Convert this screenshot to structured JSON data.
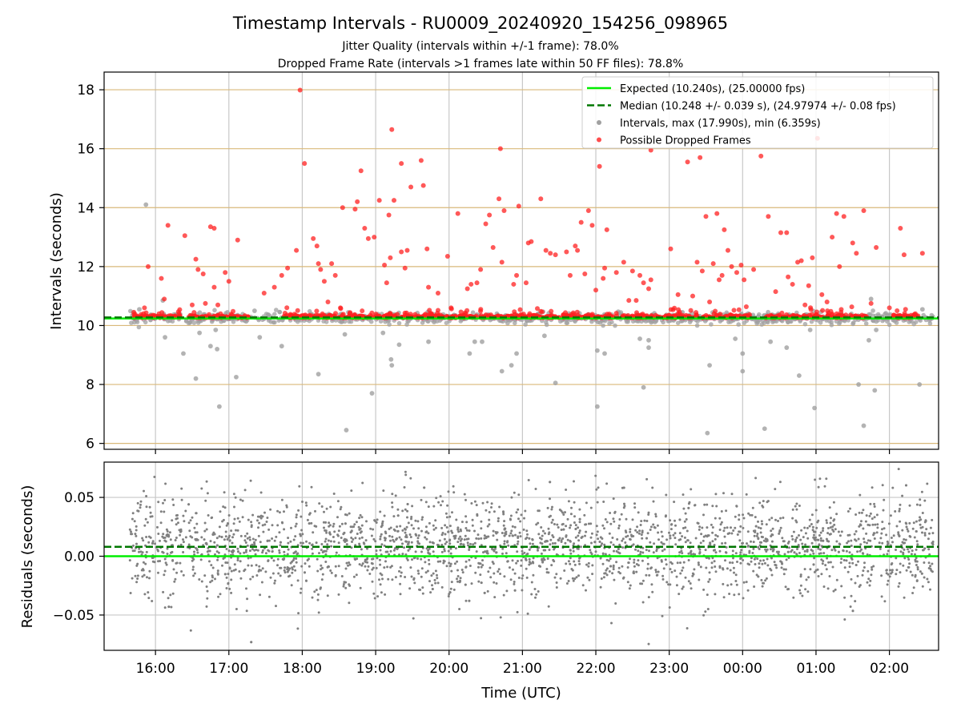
{
  "chart_data": {
    "title": "Timestamp Intervals - RU0009_20240920_154256_098965",
    "subtitle_1": "Jitter Quality (intervals within +/-1 frame): 78.0%",
    "subtitle_2": "Dropped Frame Rate (intervals >1 frames late within 50 FF files): 78.8%",
    "xlabel": "Time (UTC)",
    "x_tick_labels": [
      "16:00",
      "17:00",
      "18:00",
      "19:00",
      "20:00",
      "21:00",
      "22:00",
      "23:00",
      "00:00",
      "01:00",
      "02:00"
    ],
    "x_range_hours_from_midnight": [
      15.3,
      26.67
    ],
    "grid": true,
    "colors": {
      "expected": "#00ee00",
      "median": "#007700",
      "intervals": "#a0a0a0",
      "dropped": "#ff2020",
      "residuals": "#808080",
      "top_grid_h": "#d9b97a",
      "grid": "#c8c8c8"
    },
    "panels": [
      {
        "type": "scatter",
        "ylabel": "Intervals (seconds)",
        "ylim": [
          5.8,
          18.6
        ],
        "y_ticks": [
          "6",
          "8",
          "10",
          "12",
          "14",
          "16",
          "18"
        ],
        "y_tick_values": [
          6,
          8,
          10,
          12,
          14,
          16,
          18
        ],
        "expected_line": 10.24,
        "median_line": 10.248,
        "legend_position": "top-right",
        "legend": [
          "Expected (10.240s), (25.00000 fps)",
          "Median (10.248 +/- 0.039 s), (24.97974 +/- 0.08 fps)",
          "Intervals, max (17.990s), min (6.359s)",
          "Possible Dropped Frames"
        ],
        "interval_outliers": [
          {
            "t": 15.78,
            "y": 10.55
          },
          {
            "t": 15.87,
            "y": 14.1
          },
          {
            "t": 16.13,
            "y": 9.6
          },
          {
            "t": 16.38,
            "y": 9.05
          },
          {
            "t": 16.55,
            "y": 8.2
          },
          {
            "t": 16.6,
            "y": 9.75
          },
          {
            "t": 16.75,
            "y": 9.3
          },
          {
            "t": 16.82,
            "y": 9.85
          },
          {
            "t": 16.84,
            "y": 9.2
          },
          {
            "t": 16.87,
            "y": 7.25
          },
          {
            "t": 17.1,
            "y": 8.25
          },
          {
            "t": 17.35,
            "y": 10.5
          },
          {
            "t": 17.42,
            "y": 9.6
          },
          {
            "t": 17.72,
            "y": 9.3
          },
          {
            "t": 18.22,
            "y": 8.35
          },
          {
            "t": 18.58,
            "y": 9.7
          },
          {
            "t": 18.6,
            "y": 6.45
          },
          {
            "t": 18.95,
            "y": 7.7
          },
          {
            "t": 19.1,
            "y": 9.75
          },
          {
            "t": 19.21,
            "y": 8.85
          },
          {
            "t": 19.22,
            "y": 8.65
          },
          {
            "t": 19.32,
            "y": 9.35
          },
          {
            "t": 19.72,
            "y": 9.45
          },
          {
            "t": 20.28,
            "y": 9.05
          },
          {
            "t": 20.35,
            "y": 9.45
          },
          {
            "t": 20.45,
            "y": 9.45
          },
          {
            "t": 20.72,
            "y": 8.45
          },
          {
            "t": 20.85,
            "y": 8.65
          },
          {
            "t": 20.92,
            "y": 9.05
          },
          {
            "t": 21.3,
            "y": 9.65
          },
          {
            "t": 21.45,
            "y": 8.05
          },
          {
            "t": 22.02,
            "y": 7.25
          },
          {
            "t": 22.02,
            "y": 9.15
          },
          {
            "t": 22.12,
            "y": 9.05
          },
          {
            "t": 22.6,
            "y": 9.55
          },
          {
            "t": 22.65,
            "y": 7.9
          },
          {
            "t": 22.72,
            "y": 9.25
          },
          {
            "t": 22.72,
            "y": 9.5
          },
          {
            "t": 23.18,
            "y": 10.45
          },
          {
            "t": 23.52,
            "y": 6.35
          },
          {
            "t": 23.55,
            "y": 8.65
          },
          {
            "t": 23.9,
            "y": 9.55
          },
          {
            "t": 24.0,
            "y": 9.05
          },
          {
            "t": 24.0,
            "y": 8.45
          },
          {
            "t": 24.3,
            "y": 6.5
          },
          {
            "t": 24.38,
            "y": 9.45
          },
          {
            "t": 24.6,
            "y": 9.25
          },
          {
            "t": 24.77,
            "y": 8.3
          },
          {
            "t": 24.92,
            "y": 9.85
          },
          {
            "t": 24.98,
            "y": 7.2
          },
          {
            "t": 25.58,
            "y": 8.0
          },
          {
            "t": 25.65,
            "y": 6.6
          },
          {
            "t": 25.72,
            "y": 9.5
          },
          {
            "t": 25.8,
            "y": 7.8
          },
          {
            "t": 25.82,
            "y": 9.85
          },
          {
            "t": 26.41,
            "y": 8.0
          },
          {
            "t": 26.45,
            "y": 10.55
          },
          {
            "t": 25.75,
            "y": 10.9
          },
          {
            "t": 16.1,
            "y": 10.85
          },
          {
            "t": 17.12,
            "y": 10.35
          }
        ],
        "dropped_frames": [
          {
            "t": 15.9,
            "y": 12.0
          },
          {
            "t": 15.85,
            "y": 10.6
          },
          {
            "t": 16.08,
            "y": 11.6
          },
          {
            "t": 16.17,
            "y": 13.4
          },
          {
            "t": 16.12,
            "y": 10.9
          },
          {
            "t": 16.4,
            "y": 13.05
          },
          {
            "t": 16.5,
            "y": 10.7
          },
          {
            "t": 16.55,
            "y": 12.25
          },
          {
            "t": 16.58,
            "y": 11.9
          },
          {
            "t": 16.65,
            "y": 11.75
          },
          {
            "t": 16.68,
            "y": 10.75
          },
          {
            "t": 16.75,
            "y": 13.35
          },
          {
            "t": 16.8,
            "y": 13.3
          },
          {
            "t": 16.8,
            "y": 11.3
          },
          {
            "t": 16.85,
            "y": 10.7
          },
          {
            "t": 16.95,
            "y": 11.8
          },
          {
            "t": 17.0,
            "y": 11.5
          },
          {
            "t": 17.12,
            "y": 12.9
          },
          {
            "t": 17.48,
            "y": 11.1
          },
          {
            "t": 17.62,
            "y": 11.3
          },
          {
            "t": 17.72,
            "y": 11.7
          },
          {
            "t": 17.8,
            "y": 11.95
          },
          {
            "t": 17.92,
            "y": 12.55
          },
          {
            "t": 17.97,
            "y": 17.99
          },
          {
            "t": 18.03,
            "y": 15.5
          },
          {
            "t": 18.15,
            "y": 12.95
          },
          {
            "t": 18.2,
            "y": 12.7
          },
          {
            "t": 18.22,
            "y": 12.1
          },
          {
            "t": 18.25,
            "y": 11.9
          },
          {
            "t": 18.3,
            "y": 11.5
          },
          {
            "t": 18.35,
            "y": 10.8
          },
          {
            "t": 18.4,
            "y": 12.1
          },
          {
            "t": 18.45,
            "y": 11.7
          },
          {
            "t": 18.52,
            "y": 10.6
          },
          {
            "t": 18.55,
            "y": 14.0
          },
          {
            "t": 18.72,
            "y": 13.95
          },
          {
            "t": 18.75,
            "y": 14.2
          },
          {
            "t": 18.8,
            "y": 15.25
          },
          {
            "t": 18.85,
            "y": 13.3
          },
          {
            "t": 18.9,
            "y": 12.95
          },
          {
            "t": 18.98,
            "y": 13.0
          },
          {
            "t": 19.05,
            "y": 14.25
          },
          {
            "t": 19.12,
            "y": 12.05
          },
          {
            "t": 19.15,
            "y": 11.45
          },
          {
            "t": 19.2,
            "y": 12.3
          },
          {
            "t": 19.18,
            "y": 13.75
          },
          {
            "t": 19.22,
            "y": 16.65
          },
          {
            "t": 19.25,
            "y": 14.25
          },
          {
            "t": 19.35,
            "y": 15.5
          },
          {
            "t": 19.35,
            "y": 12.5
          },
          {
            "t": 19.4,
            "y": 11.95
          },
          {
            "t": 19.43,
            "y": 12.55
          },
          {
            "t": 19.48,
            "y": 14.7
          },
          {
            "t": 19.62,
            "y": 15.6
          },
          {
            "t": 19.65,
            "y": 14.75
          },
          {
            "t": 19.7,
            "y": 12.6
          },
          {
            "t": 19.72,
            "y": 11.3
          },
          {
            "t": 19.85,
            "y": 11.1
          },
          {
            "t": 19.98,
            "y": 12.35
          },
          {
            "t": 20.12,
            "y": 13.8
          },
          {
            "t": 20.25,
            "y": 11.25
          },
          {
            "t": 20.3,
            "y": 11.4
          },
          {
            "t": 20.38,
            "y": 11.45
          },
          {
            "t": 20.43,
            "y": 11.9
          },
          {
            "t": 20.5,
            "y": 13.45
          },
          {
            "t": 20.55,
            "y": 13.75
          },
          {
            "t": 20.6,
            "y": 12.65
          },
          {
            "t": 20.68,
            "y": 14.3
          },
          {
            "t": 20.7,
            "y": 16.0
          },
          {
            "t": 20.72,
            "y": 12.15
          },
          {
            "t": 20.75,
            "y": 13.9
          },
          {
            "t": 20.88,
            "y": 11.4
          },
          {
            "t": 20.92,
            "y": 11.7
          },
          {
            "t": 20.95,
            "y": 14.05
          },
          {
            "t": 21.05,
            "y": 11.45
          },
          {
            "t": 21.08,
            "y": 12.8
          },
          {
            "t": 21.12,
            "y": 12.85
          },
          {
            "t": 21.25,
            "y": 14.3
          },
          {
            "t": 21.32,
            "y": 12.55
          },
          {
            "t": 21.38,
            "y": 12.45
          },
          {
            "t": 21.45,
            "y": 12.4
          },
          {
            "t": 21.6,
            "y": 12.5
          },
          {
            "t": 21.65,
            "y": 11.7
          },
          {
            "t": 21.72,
            "y": 12.7
          },
          {
            "t": 21.75,
            "y": 12.55
          },
          {
            "t": 21.8,
            "y": 13.5
          },
          {
            "t": 21.85,
            "y": 11.75
          },
          {
            "t": 21.9,
            "y": 13.9
          },
          {
            "t": 21.95,
            "y": 13.4
          },
          {
            "t": 22.0,
            "y": 11.2
          },
          {
            "t": 22.05,
            "y": 15.4
          },
          {
            "t": 22.1,
            "y": 11.6
          },
          {
            "t": 22.12,
            "y": 11.95
          },
          {
            "t": 22.15,
            "y": 13.25
          },
          {
            "t": 22.28,
            "y": 11.8
          },
          {
            "t": 22.38,
            "y": 12.15
          },
          {
            "t": 22.45,
            "y": 10.85
          },
          {
            "t": 22.5,
            "y": 11.85
          },
          {
            "t": 22.55,
            "y": 10.85
          },
          {
            "t": 22.6,
            "y": 11.7
          },
          {
            "t": 22.65,
            "y": 11.45
          },
          {
            "t": 22.72,
            "y": 11.25
          },
          {
            "t": 22.75,
            "y": 11.55
          },
          {
            "t": 23.02,
            "y": 12.6
          },
          {
            "t": 23.12,
            "y": 11.05
          },
          {
            "t": 23.25,
            "y": 15.55
          },
          {
            "t": 23.32,
            "y": 11.0
          },
          {
            "t": 23.38,
            "y": 12.15
          },
          {
            "t": 23.42,
            "y": 15.7
          },
          {
            "t": 23.45,
            "y": 11.85
          },
          {
            "t": 23.5,
            "y": 13.7
          },
          {
            "t": 23.55,
            "y": 10.8
          },
          {
            "t": 23.6,
            "y": 12.1
          },
          {
            "t": 23.65,
            "y": 13.8
          },
          {
            "t": 23.68,
            "y": 11.55
          },
          {
            "t": 23.72,
            "y": 11.7
          },
          {
            "t": 23.75,
            "y": 13.25
          },
          {
            "t": 23.8,
            "y": 12.55
          },
          {
            "t": 23.85,
            "y": 12.0
          },
          {
            "t": 23.92,
            "y": 11.8
          },
          {
            "t": 23.98,
            "y": 12.05
          },
          {
            "t": 24.02,
            "y": 11.55
          },
          {
            "t": 24.15,
            "y": 11.9
          },
          {
            "t": 24.25,
            "y": 15.75
          },
          {
            "t": 24.35,
            "y": 13.7
          },
          {
            "t": 24.45,
            "y": 11.15
          },
          {
            "t": 24.52,
            "y": 13.15
          },
          {
            "t": 24.6,
            "y": 13.15
          },
          {
            "t": 24.62,
            "y": 11.65
          },
          {
            "t": 24.68,
            "y": 11.4
          },
          {
            "t": 24.75,
            "y": 12.15
          },
          {
            "t": 24.8,
            "y": 12.2
          },
          {
            "t": 24.85,
            "y": 10.7
          },
          {
            "t": 24.9,
            "y": 11.35
          },
          {
            "t": 24.95,
            "y": 12.3
          },
          {
            "t": 25.02,
            "y": 16.35
          },
          {
            "t": 25.08,
            "y": 11.05
          },
          {
            "t": 25.15,
            "y": 10.8
          },
          {
            "t": 25.22,
            "y": 13.0
          },
          {
            "t": 25.28,
            "y": 13.8
          },
          {
            "t": 25.32,
            "y": 12.0
          },
          {
            "t": 25.38,
            "y": 13.7
          },
          {
            "t": 25.5,
            "y": 12.8
          },
          {
            "t": 25.55,
            "y": 12.45
          },
          {
            "t": 25.65,
            "y": 13.9
          },
          {
            "t": 25.75,
            "y": 10.75
          },
          {
            "t": 25.82,
            "y": 12.65
          },
          {
            "t": 26.15,
            "y": 13.3
          },
          {
            "t": 26.2,
            "y": 12.4
          },
          {
            "t": 26.45,
            "y": 12.45
          },
          {
            "t": 26.22,
            "y": 10.55
          },
          {
            "t": 26.0,
            "y": 10.6
          },
          {
            "t": 22.75,
            "y": 15.95
          }
        ],
        "baseline_band": {
          "t_start": 15.65,
          "t_end": 26.6,
          "y_center": 10.25,
          "spread": 0.04
        }
      },
      {
        "type": "scatter",
        "ylabel": "Residuals (seconds)",
        "ylim": [
          -0.08,
          0.08
        ],
        "y_ticks": [
          "−0.05",
          "0.00",
          "0.05"
        ],
        "y_tick_values": [
          -0.05,
          0.0,
          0.05
        ],
        "expected_line": 0.0,
        "median_line": 0.008,
        "points": 2600,
        "t_range": [
          15.65,
          26.6
        ]
      }
    ]
  }
}
